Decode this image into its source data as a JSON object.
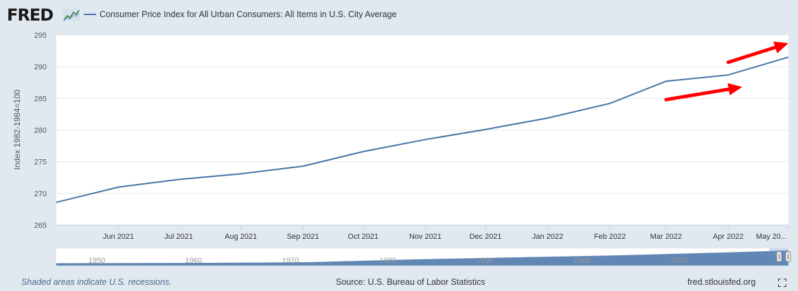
{
  "header": {
    "logo_text": "FRED",
    "legend_label": "Consumer Price Index for All Urban Consumers: All Items in U.S. City Average",
    "series_color": "#4572a7"
  },
  "chart_data": {
    "type": "line",
    "title": "Consumer Price Index for All Urban Consumers: All Items in U.S. City Average",
    "ylabel": "Index 1982-1984=100",
    "xlabel": "",
    "ylim": [
      265,
      295
    ],
    "yticks": [
      265,
      270,
      275,
      280,
      285,
      290,
      295
    ],
    "grid": true,
    "series": [
      {
        "name": "Consumer Price Index for All Urban Consumers: All Items in U.S. City Average",
        "color": "#4572a7",
        "points": [
          {
            "x": "2021-05-01",
            "y": 268.6
          },
          {
            "x": "2021-06-01",
            "y": 271.0
          },
          {
            "x": "2021-07-01",
            "y": 272.2
          },
          {
            "x": "2021-08-01",
            "y": 273.1
          },
          {
            "x": "2021-09-01",
            "y": 274.3
          },
          {
            "x": "2021-10-01",
            "y": 276.6
          },
          {
            "x": "2021-11-01",
            "y": 278.5
          },
          {
            "x": "2021-12-01",
            "y": 280.1
          },
          {
            "x": "2022-01-01",
            "y": 281.9
          },
          {
            "x": "2022-02-01",
            "y": 284.2
          },
          {
            "x": "2022-03-01",
            "y": 287.7
          },
          {
            "x": "2022-04-01",
            "y": 288.7
          },
          {
            "x": "2022-05-01",
            "y": 291.5
          }
        ]
      }
    ],
    "x_tick_labels": [
      {
        "x": "2021-06-01",
        "label": "Jun 2021"
      },
      {
        "x": "2021-07-01",
        "label": "Jul 2021"
      },
      {
        "x": "2021-08-01",
        "label": "Aug 2021"
      },
      {
        "x": "2021-09-01",
        "label": "Sep 2021"
      },
      {
        "x": "2021-10-01",
        "label": "Oct 2021"
      },
      {
        "x": "2021-11-01",
        "label": "Nov 2021"
      },
      {
        "x": "2021-12-01",
        "label": "Dec 2021"
      },
      {
        "x": "2022-01-01",
        "label": "Jan 2022"
      },
      {
        "x": "2022-02-01",
        "label": "Feb 2022"
      },
      {
        "x": "2022-03-01",
        "label": "Mar 2022"
      },
      {
        "x": "2022-04-01",
        "label": "Apr 2022"
      },
      {
        "x": "2022-05-01",
        "label": "May 20..."
      }
    ],
    "annotations": [
      {
        "type": "arrow",
        "color": "#ff0000",
        "from": {
          "x": "2022-03-01",
          "y": 284.8
        },
        "to": {
          "x": "2022-04-08",
          "y": 286.8
        }
      },
      {
        "type": "arrow",
        "color": "#ff0000",
        "from": {
          "x": "2022-04-01",
          "y": 290.7
        },
        "to": {
          "x": "2022-05-01",
          "y": 293.7
        }
      }
    ],
    "navigator": {
      "x_tick_labels": [
        "1950",
        "1960",
        "1970",
        "1980",
        "1990",
        "2000",
        "2010"
      ],
      "fill_color": "#4572a7"
    }
  },
  "footer": {
    "recession_note": "Shaded areas indicate U.S. recessions.",
    "source": "Source: U.S. Bureau of Labor Statistics",
    "site": "fred.stlouisfed.org"
  }
}
